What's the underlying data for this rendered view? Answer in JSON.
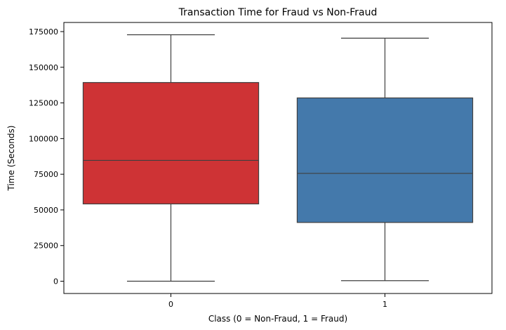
{
  "chart_data": {
    "type": "box",
    "title": "Transaction Time for Fraud vs Non-Fraud",
    "xlabel": "Class (0 = Non-Fraud, 1 = Fraud)",
    "ylabel": "Time (Seconds)",
    "categories": [
      "0",
      "1"
    ],
    "boxes": [
      {
        "category": "0",
        "min": 0,
        "q1": 54200,
        "median": 84700,
        "q3": 139300,
        "max": 172800,
        "color": "#ce3335"
      },
      {
        "category": "1",
        "min": 400,
        "q1": 41200,
        "median": 75600,
        "q3": 128500,
        "max": 170400,
        "color": "#4479ab"
      }
    ],
    "ylim": [
      -8600,
      181400
    ],
    "yticks": [
      0,
      25000,
      50000,
      75000,
      100000,
      125000,
      150000,
      175000
    ],
    "grid": false,
    "legend": "none"
  }
}
